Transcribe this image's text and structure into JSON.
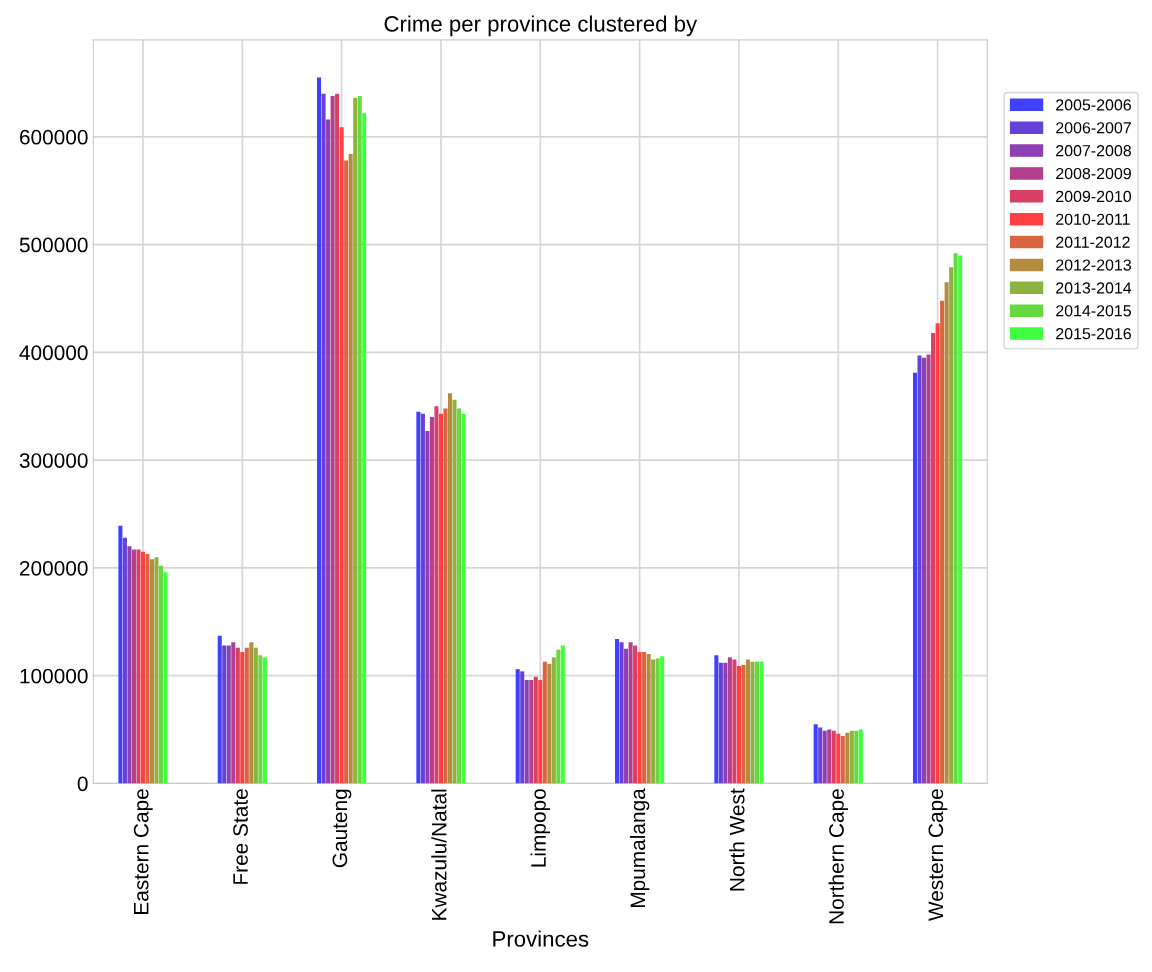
{
  "chart_data": {
    "type": "bar",
    "title": "Crime per province clustered by",
    "xlabel": "Provinces",
    "categories": [
      "Eastern Cape",
      "Free State",
      "Gauteng",
      "Kwazulu/Natal",
      "Limpopo",
      "Mpumalanga",
      "North West",
      "Northern Cape",
      "Western Cape"
    ],
    "ylim": [
      0,
      690000
    ],
    "yticks": [
      0,
      100000,
      200000,
      300000,
      400000,
      500000,
      600000
    ],
    "grid": true,
    "legend": "top right",
    "series": [
      {
        "name": "2005-2006",
        "color": "#4040ff",
        "values": [
          239000,
          137000,
          655000,
          345000,
          106000,
          134000,
          119000,
          55000,
          381000
        ]
      },
      {
        "name": "2006-2007",
        "color": "#6640d9",
        "values": [
          228000,
          128000,
          640000,
          343000,
          104000,
          131000,
          112000,
          52000,
          397000
        ]
      },
      {
        "name": "2007-2008",
        "color": "#8c40b3",
        "values": [
          220000,
          128000,
          616000,
          327000,
          96000,
          125000,
          112000,
          49000,
          395000
        ]
      },
      {
        "name": "2008-2009",
        "color": "#b3408c",
        "values": [
          217000,
          131000,
          638000,
          340000,
          96000,
          131000,
          117000,
          50000,
          398000
        ]
      },
      {
        "name": "2009-2010",
        "color": "#d94066",
        "values": [
          217000,
          126000,
          640000,
          350000,
          99000,
          128000,
          115000,
          49000,
          418000
        ]
      },
      {
        "name": "2010-2011",
        "color": "#ff4040",
        "values": [
          215000,
          122000,
          609000,
          343000,
          96000,
          122000,
          109000,
          46000,
          427000
        ]
      },
      {
        "name": "2011-2012",
        "color": "#d96640",
        "values": [
          213000,
          126000,
          578000,
          348000,
          113000,
          122000,
          110000,
          44000,
          448000
        ]
      },
      {
        "name": "2012-2013",
        "color": "#b38c40",
        "values": [
          208000,
          131000,
          584000,
          362000,
          111000,
          120000,
          115000,
          47000,
          465000
        ]
      },
      {
        "name": "2013-2014",
        "color": "#8cb340",
        "values": [
          210000,
          126000,
          636000,
          356000,
          117000,
          115000,
          113000,
          49000,
          479000
        ]
      },
      {
        "name": "2014-2015",
        "color": "#66d940",
        "values": [
          202000,
          119000,
          638000,
          348000,
          124000,
          116000,
          113000,
          49000,
          492000
        ]
      },
      {
        "name": "2015-2016",
        "color": "#40ff40",
        "values": [
          196000,
          117000,
          622000,
          343000,
          128000,
          118000,
          113000,
          50000,
          490000
        ]
      }
    ]
  }
}
